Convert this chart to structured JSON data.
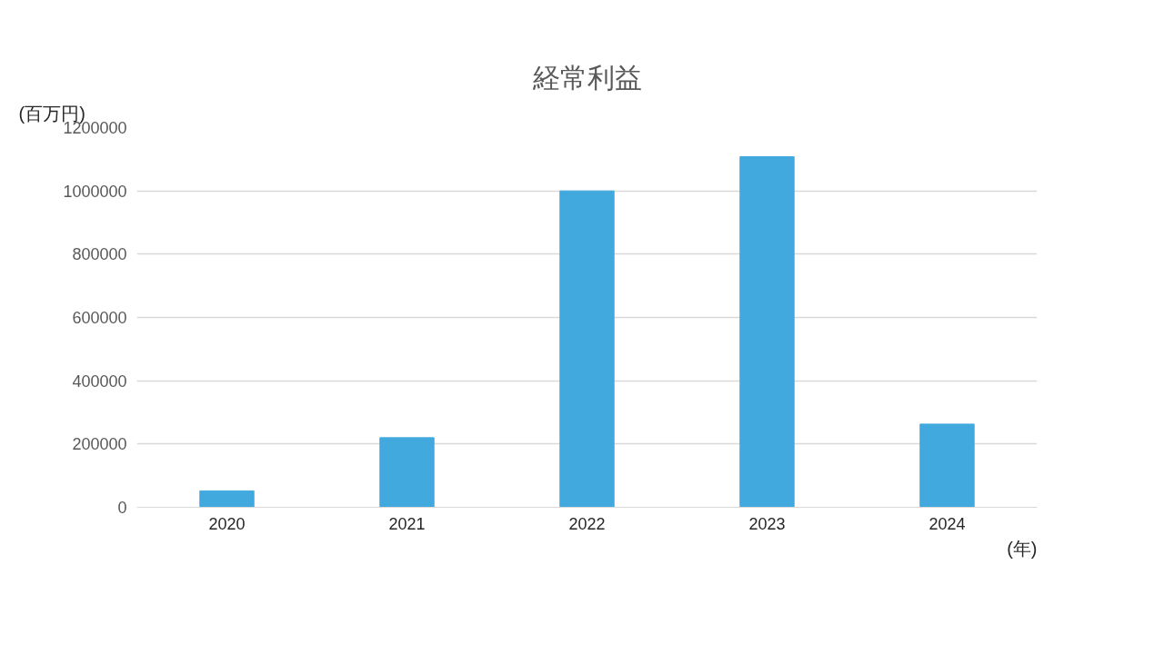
{
  "chart_data": {
    "type": "bar",
    "title": "経常利益",
    "ylabel": "(百万円)",
    "xlabel": "(年)",
    "categories": [
      "2020",
      "2021",
      "2022",
      "2023",
      "2024"
    ],
    "values": [
      52000,
      220000,
      1000000,
      1108000,
      263000
    ],
    "color": "#41a9de",
    "ylim": [
      0,
      1200000
    ],
    "yticks": [
      0,
      200000,
      400000,
      600000,
      800000,
      1000000,
      1200000
    ],
    "grid": "y"
  }
}
